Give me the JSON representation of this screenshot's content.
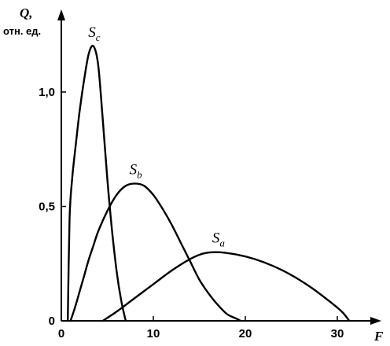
{
  "chart_data": {
    "type": "line",
    "title": "",
    "xlabel": "F",
    "ylabel": "Q,",
    "yunit": "отн. ед.",
    "xlim": [
      0,
      34
    ],
    "ylim": [
      0,
      1.3
    ],
    "xticks": [
      0,
      10,
      20,
      30
    ],
    "xtick_labels": [
      "0",
      "10",
      "20",
      "30"
    ],
    "yticks": [
      0,
      0.5,
      1.0
    ],
    "ytick_labels": [
      "0",
      "0,5",
      "1,0"
    ],
    "grid": false,
    "series": [
      {
        "name": "Sc",
        "main": "S",
        "sub": "c",
        "x": [
          0.7,
          0.9,
          1.2,
          1.6,
          2.0,
          2.5,
          3.0,
          3.5,
          4.0,
          4.5,
          5.0,
          5.5,
          6.0,
          6.5,
          7.0
        ],
        "y": [
          0.0,
          0.45,
          0.63,
          0.78,
          0.92,
          1.06,
          1.17,
          1.2,
          1.12,
          0.88,
          0.62,
          0.4,
          0.22,
          0.09,
          0.0
        ]
      },
      {
        "name": "Sb",
        "main": "S",
        "sub": "b",
        "x": [
          1.0,
          1.5,
          2.0,
          2.5,
          3.0,
          3.5,
          4.0,
          5.0,
          6.0,
          7.0,
          8.0,
          9.0,
          10.0,
          11.0,
          12.0,
          13.0,
          14.0,
          15.0,
          16.0,
          17.0,
          18.0,
          19.0,
          19.5
        ],
        "y": [
          0.0,
          0.06,
          0.13,
          0.2,
          0.27,
          0.33,
          0.39,
          0.48,
          0.55,
          0.59,
          0.6,
          0.59,
          0.55,
          0.49,
          0.42,
          0.34,
          0.26,
          0.18,
          0.12,
          0.07,
          0.03,
          0.01,
          0.0
        ]
      },
      {
        "name": "Sa",
        "main": "S",
        "sub": "a",
        "x": [
          4.5,
          6.0,
          8.0,
          10.0,
          12.0,
          14.0,
          15.5,
          17.0,
          19.0,
          21.0,
          23.0,
          25.0,
          27.0,
          29.0,
          30.5,
          31.3
        ],
        "y": [
          0.0,
          0.04,
          0.1,
          0.16,
          0.22,
          0.27,
          0.295,
          0.3,
          0.29,
          0.27,
          0.24,
          0.2,
          0.15,
          0.09,
          0.04,
          0.0
        ]
      }
    ]
  }
}
